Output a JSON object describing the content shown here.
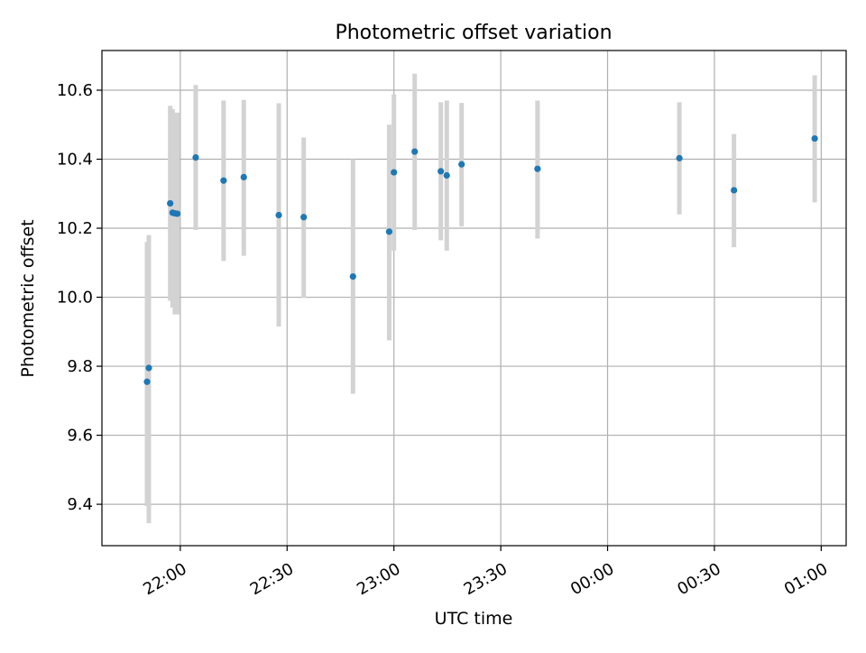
{
  "chart_data": {
    "type": "scatter",
    "title": "Photometric offset variation",
    "xlabel": "UTC time",
    "ylabel": "Photometric offset",
    "xlim": [
      "21:38",
      "01:07"
    ],
    "ylim": [
      9.28,
      10.715
    ],
    "grid": true,
    "x_ticks": [
      {
        "t": "22:00",
        "label": "22:00"
      },
      {
        "t": "22:30",
        "label": "22:30"
      },
      {
        "t": "23:00",
        "label": "23:00"
      },
      {
        "t": "23:30",
        "label": "23:30"
      },
      {
        "t": "00:00",
        "label": "00:00"
      },
      {
        "t": "00:30",
        "label": "00:30"
      },
      {
        "t": "01:00",
        "label": "01:00"
      }
    ],
    "y_ticks": [
      9.4,
      9.6,
      9.8,
      10.0,
      10.2,
      10.4,
      10.6
    ],
    "y_tick_labels": [
      "9.4",
      "9.6",
      "9.8",
      "10.0",
      "10.2",
      "10.4",
      "10.6"
    ],
    "points": [
      {
        "t": "21:50:40",
        "y": 9.755,
        "err_low": 9.395,
        "err_high": 10.16
      },
      {
        "t": "21:51:10",
        "y": 9.795,
        "err_low": 9.345,
        "err_high": 10.18
      },
      {
        "t": "21:57:10",
        "y": 10.272,
        "err_low": 9.99,
        "err_high": 10.555
      },
      {
        "t": "21:57:50",
        "y": 10.245,
        "err_low": 9.97,
        "err_high": 10.545
      },
      {
        "t": "21:58:30",
        "y": 10.243,
        "err_low": 9.95,
        "err_high": 10.535
      },
      {
        "t": "21:59:10",
        "y": 10.242,
        "err_low": 9.95,
        "err_high": 10.535
      },
      {
        "t": "22:04:20",
        "y": 10.405,
        "err_low": 10.195,
        "err_high": 10.615
      },
      {
        "t": "22:12:10",
        "y": 10.338,
        "err_low": 10.105,
        "err_high": 10.57
      },
      {
        "t": "22:17:50",
        "y": 10.348,
        "err_low": 10.12,
        "err_high": 10.572
      },
      {
        "t": "22:27:40",
        "y": 10.238,
        "err_low": 9.915,
        "err_high": 10.562
      },
      {
        "t": "22:34:40",
        "y": 10.232,
        "err_low": 9.998,
        "err_high": 10.463
      },
      {
        "t": "22:48:30",
        "y": 10.06,
        "err_low": 9.72,
        "err_high": 10.4
      },
      {
        "t": "22:58:40",
        "y": 10.19,
        "err_low": 9.875,
        "err_high": 10.5
      },
      {
        "t": "23:00:00",
        "y": 10.362,
        "err_low": 10.135,
        "err_high": 10.588
      },
      {
        "t": "23:05:50",
        "y": 10.422,
        "err_low": 10.195,
        "err_high": 10.648
      },
      {
        "t": "23:13:10",
        "y": 10.365,
        "err_low": 10.165,
        "err_high": 10.565
      },
      {
        "t": "23:14:50",
        "y": 10.353,
        "err_low": 10.135,
        "err_high": 10.57
      },
      {
        "t": "23:19:00",
        "y": 10.385,
        "err_low": 10.205,
        "err_high": 10.563
      },
      {
        "t": "23:40:20",
        "y": 10.372,
        "err_low": 10.17,
        "err_high": 10.57
      },
      {
        "t": "00:20:10",
        "y": 10.403,
        "err_low": 10.24,
        "err_high": 10.565
      },
      {
        "t": "00:35:30",
        "y": 10.31,
        "err_low": 10.145,
        "err_high": 10.473
      },
      {
        "t": "00:58:10",
        "y": 10.46,
        "err_low": 10.275,
        "err_high": 10.643
      }
    ],
    "colors": {
      "point": "#1f77b4",
      "errorbar": "#d3d3d3",
      "grid": "#b0b0b0",
      "axes": "#000000"
    }
  }
}
